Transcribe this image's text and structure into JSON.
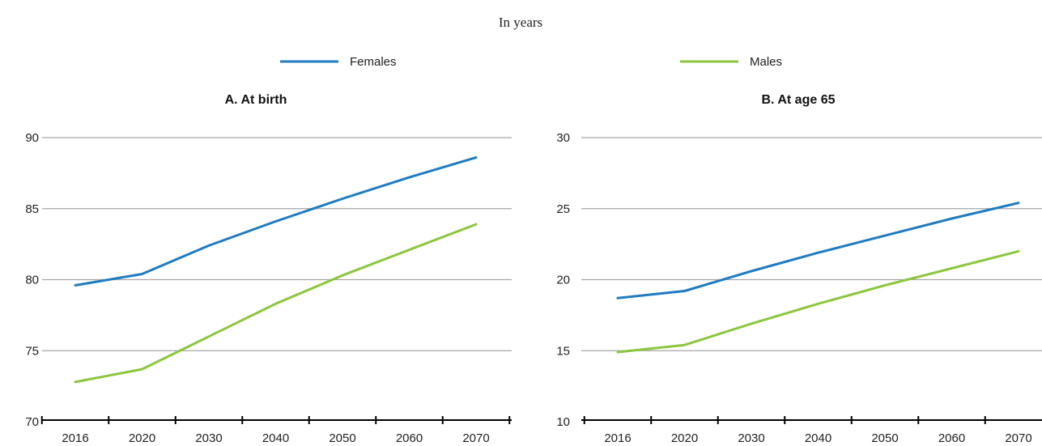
{
  "subtitle": "In years",
  "legend": [
    {
      "label": "Females",
      "color": "#1f7bc1"
    },
    {
      "label": "Males",
      "color": "#8cc63f"
    }
  ],
  "chart_data": [
    {
      "type": "line",
      "title": "A. At birth",
      "x": [
        "2016",
        "2020",
        "2030",
        "2040",
        "2050",
        "2060",
        "2070"
      ],
      "ylim": [
        70,
        90
      ],
      "yticks": [
        70,
        75,
        80,
        85,
        90
      ],
      "grid": true,
      "series": [
        {
          "name": "Females",
          "color": "#1f7bc1",
          "values": [
            79.6,
            80.4,
            82.4,
            84.1,
            85.7,
            87.2,
            88.6
          ]
        },
        {
          "name": "Males",
          "color": "#8cc63f",
          "values": [
            72.8,
            73.7,
            76.0,
            78.3,
            80.3,
            82.1,
            83.9
          ]
        }
      ]
    },
    {
      "type": "line",
      "title": "B. At age 65",
      "x": [
        "2016",
        "2020",
        "2030",
        "2040",
        "2050",
        "2060",
        "2070"
      ],
      "ylim": [
        10,
        30
      ],
      "yticks": [
        10,
        15,
        20,
        25,
        30
      ],
      "grid": true,
      "series": [
        {
          "name": "Females",
          "color": "#1f7bc1",
          "values": [
            18.7,
            19.2,
            20.6,
            21.9,
            23.1,
            24.3,
            25.4
          ]
        },
        {
          "name": "Males",
          "color": "#8cc63f",
          "values": [
            14.9,
            15.4,
            16.9,
            18.3,
            19.6,
            20.8,
            22.0
          ]
        }
      ]
    }
  ]
}
